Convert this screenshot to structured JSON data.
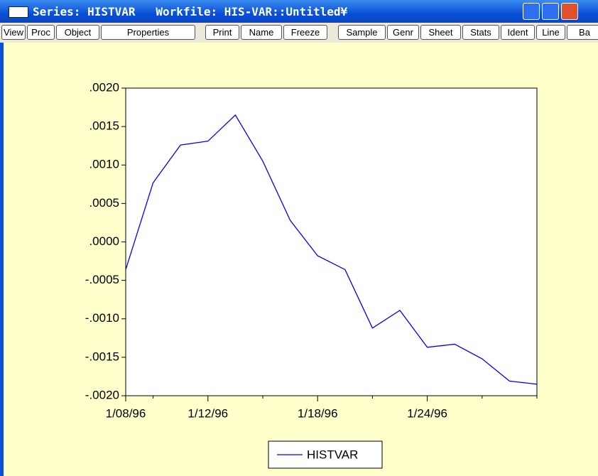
{
  "window": {
    "title": "Series: HISTVAR   Workfile: HIS-VAR::Untitled¥",
    "toolbar": [
      "View",
      "Proc",
      "Object",
      "Properties",
      "Print",
      "Name",
      "Freeze",
      "Sample",
      "Genr",
      "Sheet",
      "Stats",
      "Ident",
      "Line",
      "Ba"
    ]
  },
  "chart_data": {
    "type": "line",
    "categories": [
      "1/08/96",
      null,
      null,
      "1/12/96",
      null,
      null,
      null,
      "1/18/96",
      null,
      null,
      null,
      "1/24/96",
      null,
      null,
      null,
      null
    ],
    "series": [
      {
        "name": "HISTVAR",
        "color": "#0000ff",
        "values": [
          -0.00036,
          0.00077,
          0.00126,
          0.00131,
          0.00165,
          0.00105,
          0.00028,
          -0.00018,
          -0.00036,
          -0.00112,
          -0.00089,
          -0.00137,
          -0.00133,
          -0.00152,
          -0.00181,
          -0.00185
        ]
      }
    ],
    "ylim": [
      -0.002,
      0.002
    ],
    "yticks": [
      {
        "value": -0.002,
        "label": "-.0020"
      },
      {
        "value": -0.0015,
        "label": "-.0015"
      },
      {
        "value": -0.001,
        "label": "-.0010"
      },
      {
        "value": -0.0005,
        "label": "-.0005"
      },
      {
        "value": 0,
        "label": ".0000"
      },
      {
        "value": 0.0005,
        "label": ".0005"
      },
      {
        "value": 0.001,
        "label": ".0010"
      },
      {
        "value": 0.0015,
        "label": ".0015"
      },
      {
        "value": 0.002,
        "label": ".0020"
      }
    ],
    "grid": false
  }
}
